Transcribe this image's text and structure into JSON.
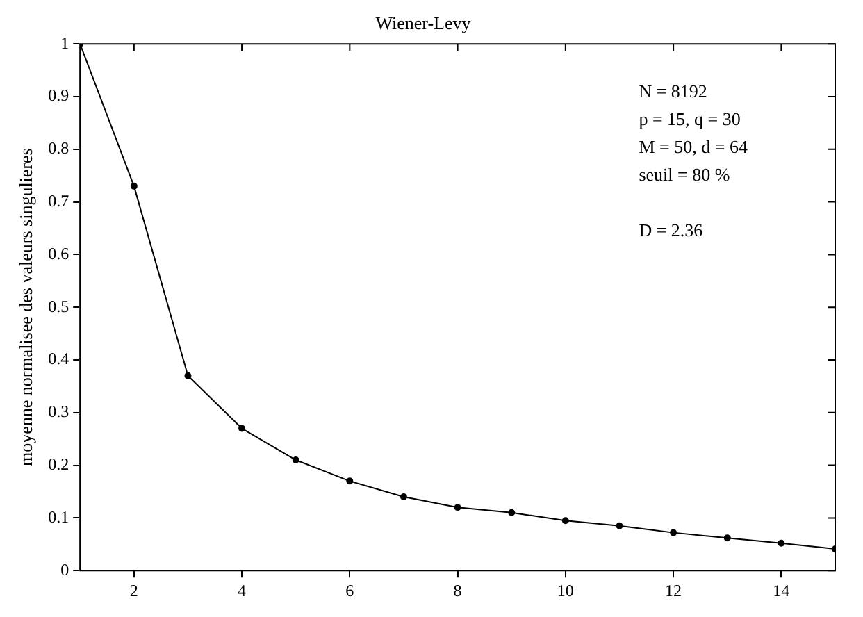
{
  "chart_data": {
    "type": "line",
    "title": "Wiener-Levy",
    "ylabel": "moyenne normalisee des valeurs singulieres",
    "x": [
      1,
      2,
      3,
      4,
      5,
      6,
      7,
      8,
      9,
      10,
      11,
      12,
      13,
      14,
      15
    ],
    "series": [
      {
        "color": "#000000",
        "values": [
          1.0,
          0.73,
          0.37,
          0.27,
          0.21,
          0.17,
          0.14,
          0.12,
          0.11,
          0.095,
          0.085,
          0.072,
          0.062,
          0.052,
          0.041
        ]
      }
    ],
    "xlim": [
      1,
      15
    ],
    "xticks": [
      2,
      4,
      6,
      8,
      10,
      12,
      14
    ],
    "ylim": [
      0,
      1
    ],
    "yticks": [
      0,
      0.1,
      0.2,
      0.3,
      0.4,
      0.5,
      0.6,
      0.7,
      0.8,
      0.9,
      1
    ],
    "annotations": [
      "N = 8192",
      "p = 15, q = 30",
      "M = 50, d = 64",
      "seuil = 80 %",
      "D = 2.36"
    ],
    "grid": false,
    "legend": false,
    "marker": "circle",
    "line_style": "solid"
  }
}
